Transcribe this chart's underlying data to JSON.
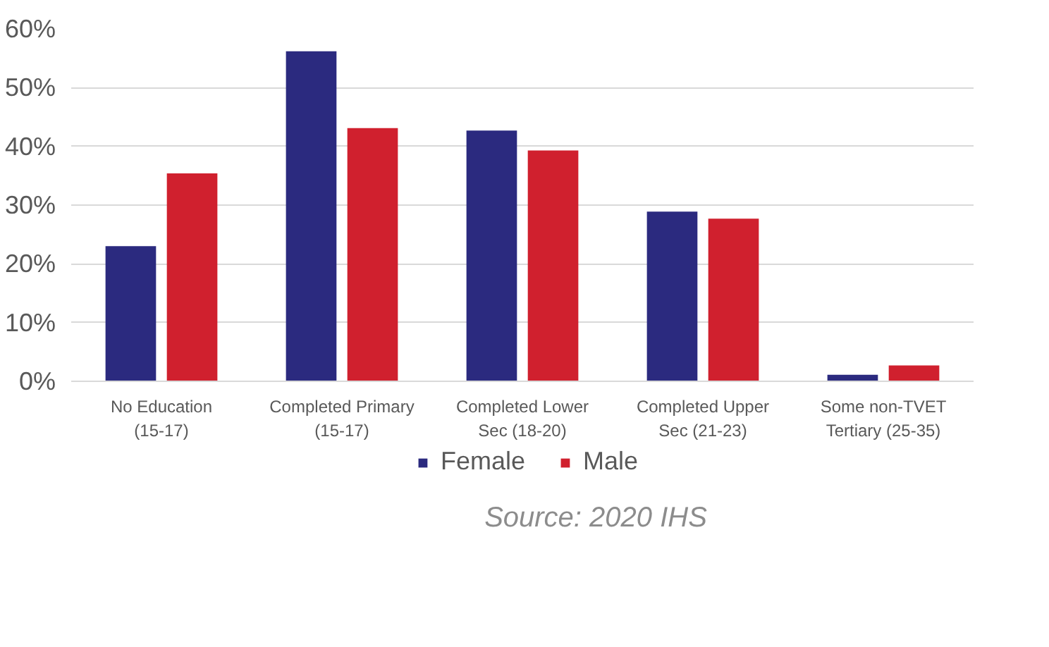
{
  "chart_data": {
    "type": "bar",
    "categories": [
      "No Education (15-17)",
      "Completed Primary (15-17)",
      "Completed Lower Sec (18-20)",
      "Completed Upper Sec (21-23)",
      "Some non-TVET Tertiary (25-35)"
    ],
    "series": [
      {
        "name": "Female",
        "color": "#2b2a7f",
        "values": [
          23.0,
          56.2,
          42.7,
          28.9,
          1.1
        ]
      },
      {
        "name": "Male",
        "color": "#d0202e",
        "values": [
          35.4,
          43.1,
          39.3,
          27.7,
          2.7
        ]
      }
    ],
    "ylim": [
      0,
      60
    ],
    "yticks": [
      {
        "value": 0,
        "label": "0%"
      },
      {
        "value": 10,
        "label": "10%"
      },
      {
        "value": 20,
        "label": "20%"
      },
      {
        "value": 30,
        "label": "30%"
      },
      {
        "value": 40,
        "label": "40%"
      },
      {
        "value": 50,
        "label": "50%"
      },
      {
        "value": 60,
        "label": "60%"
      }
    ],
    "grid": "y",
    "legend": "bottom",
    "annotations": [
      "Source: 2020 IHS"
    ]
  }
}
